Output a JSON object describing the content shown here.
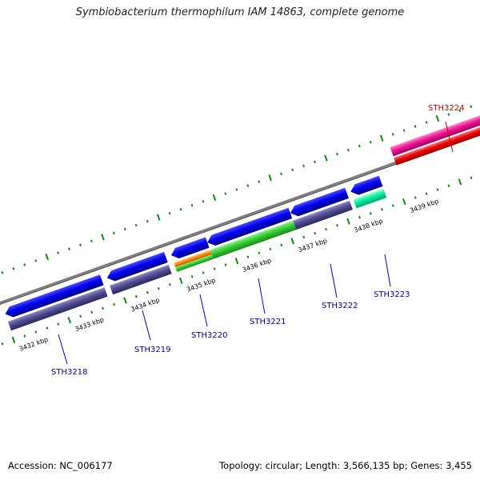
{
  "title": "Symbiobacterium thermophilum IAM 14863, complete genome",
  "footer": {
    "accession": "Accession: NC_006177",
    "summary": "Topology: circular; Length: 3,566,135 bp; Genes: 3,455"
  },
  "colors": {
    "forward_gene": "#0000dd",
    "reverse_gene": "#504c90",
    "rna_gene": "#00ee99",
    "highlight_gene": "#ee1493",
    "highlight_reverse": "#ee0000",
    "tick": "#118811",
    "backbone": "#777777",
    "label_normal": "#0000aa",
    "label_highlight": "#cc0000"
  },
  "kbp_labels": [
    "3432 kbp",
    "3433 kbp",
    "3434 kbp",
    "3435 kbp",
    "3436 kbp",
    "3437 kbp",
    "3438 kbp",
    "3439 kbp"
  ],
  "genes": [
    {
      "label": "STH3218",
      "highlight": false
    },
    {
      "label": "STH3219",
      "highlight": false
    },
    {
      "label": "STH3220",
      "highlight": false
    },
    {
      "label": "STH3221",
      "highlight": false
    },
    {
      "label": "STH3222",
      "highlight": false
    },
    {
      "label": "STH3223",
      "highlight": false
    },
    {
      "label": "STH3224",
      "highlight": true
    }
  ]
}
